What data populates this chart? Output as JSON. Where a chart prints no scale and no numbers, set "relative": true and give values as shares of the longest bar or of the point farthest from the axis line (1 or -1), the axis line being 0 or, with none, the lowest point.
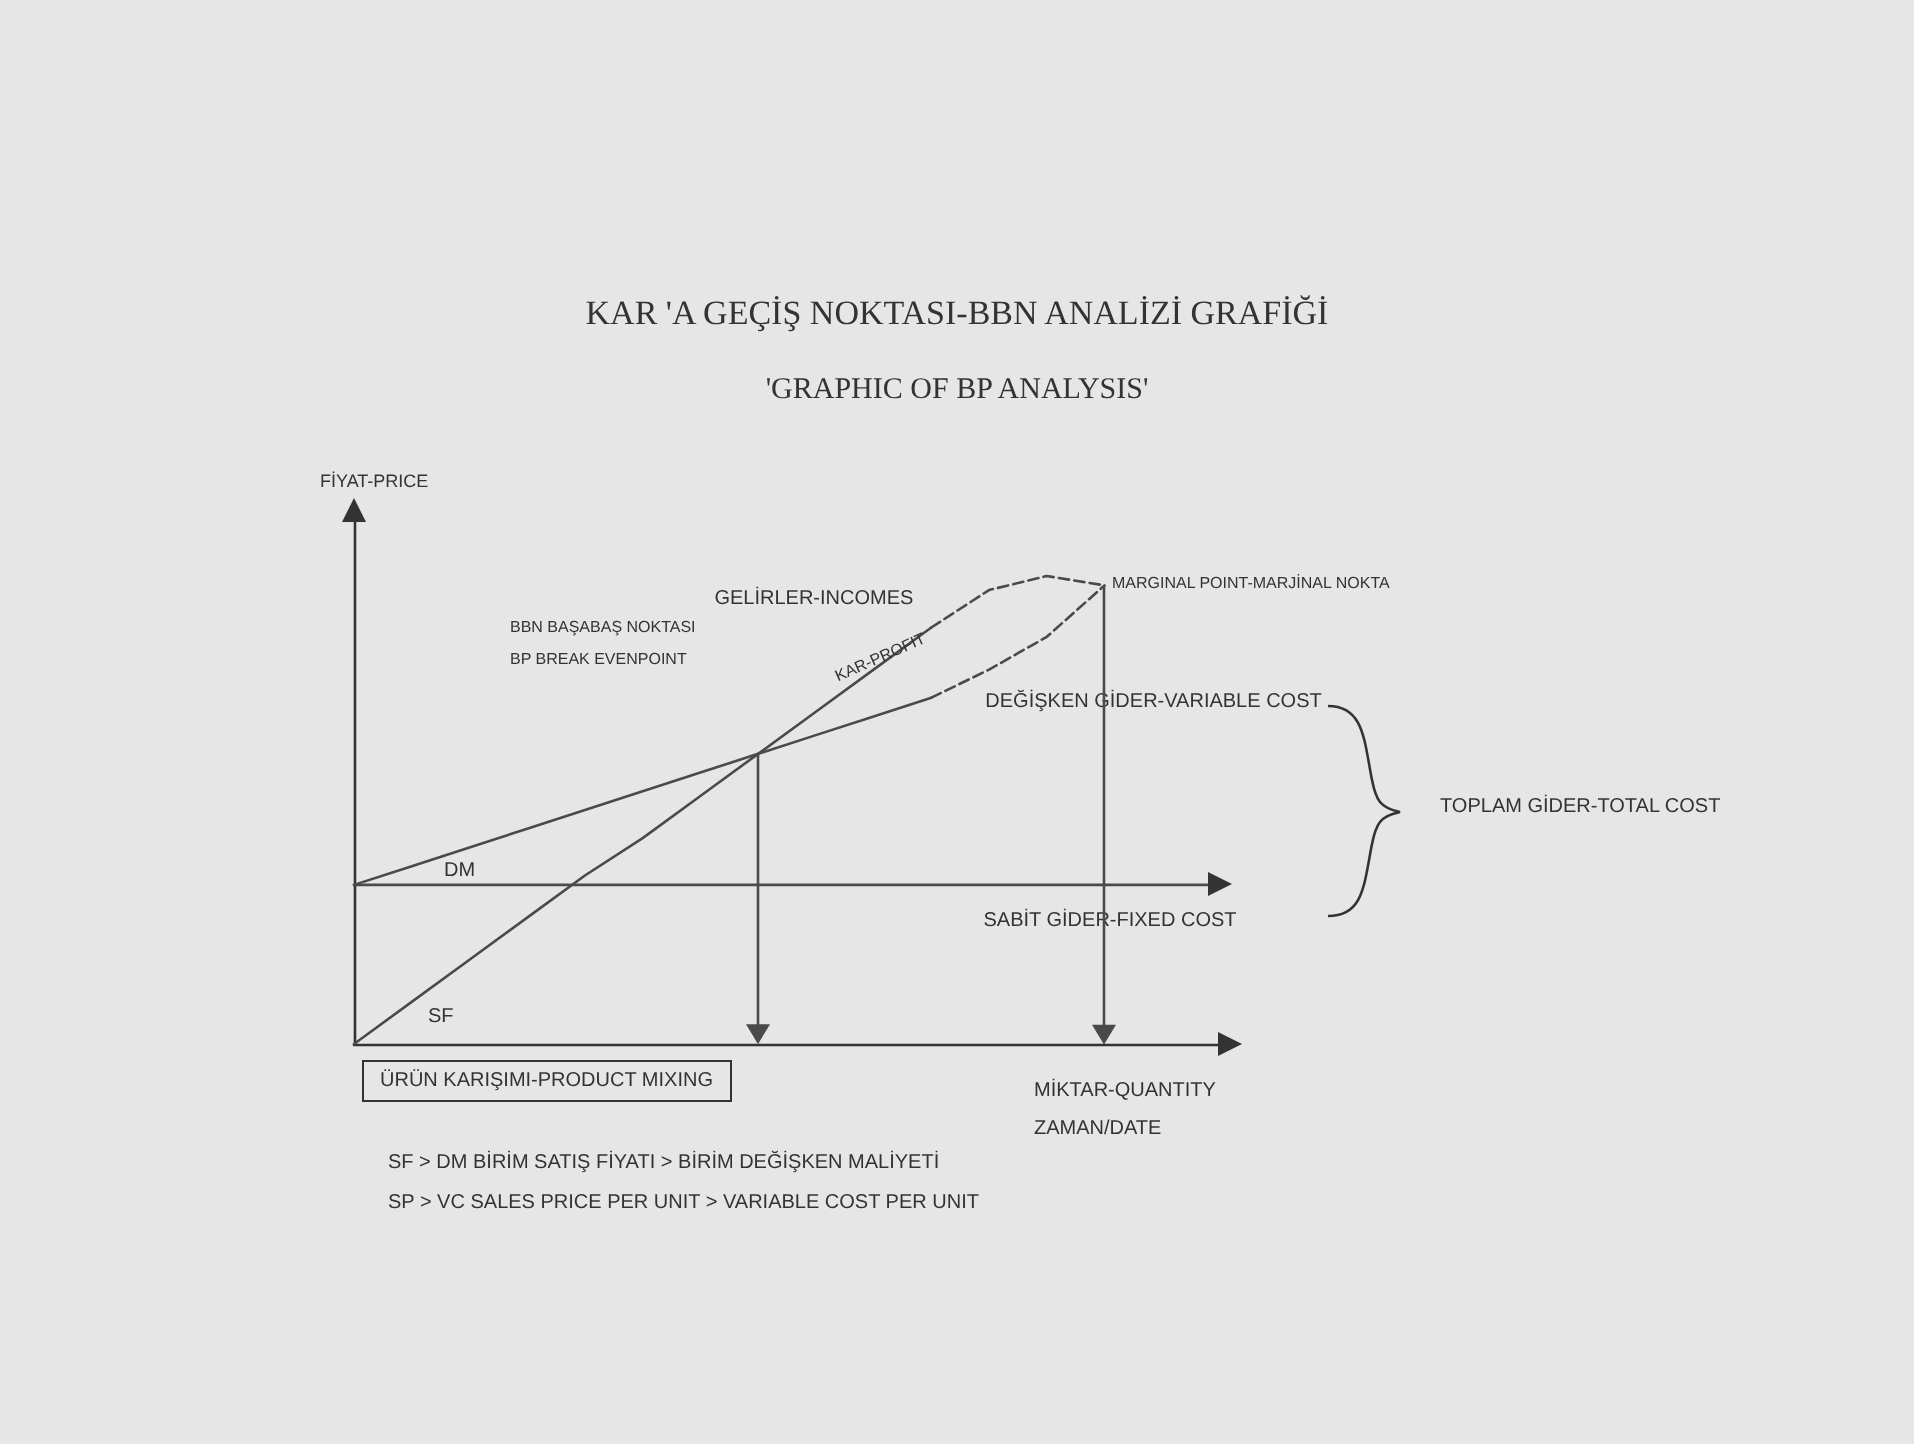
{
  "chart_data": {
    "type": "line",
    "title": "KAR 'A GEÇİŞ NOKTASI-BBN ANALİZİ GRAFİĞİ",
    "subtitle": "'GRAPHIC OF BP ANALYSIS'",
    "xlabel": "MİKTAR-QUANTITY\nZAMAN/DATE",
    "ylabel": "FİYAT-PRICE",
    "relative": true,
    "grid": false,
    "legend": false,
    "marker": "none",
    "categories": [
      null,
      null,
      null,
      null,
      null,
      null,
      null,
      null,
      null,
      null,
      null,
      null,
      null,
      null,
      null,
      null
    ],
    "series": [
      {
        "name": "GELİRLER-INCOMES",
        "color": "#4a4a4a",
        "values": [
          0,
          0.09,
          0.18,
          0.27,
          0.36,
          0.44,
          0.53,
          0.62,
          0.71,
          0.8,
          0.89,
          null,
          null,
          null,
          null,
          null
        ]
      },
      {
        "color": "#4a4a4a",
        "line_style": "dashed",
        "values": [
          null,
          null,
          null,
          null,
          null,
          null,
          null,
          null,
          null,
          null,
          0.89,
          0.97,
          1.0,
          0.98,
          null,
          null
        ]
      },
      {
        "name": "DEĞİŞKEN GİDER-VARIABLE COST",
        "color": "#4a4a4a",
        "values": [
          0.34,
          0.38,
          0.42,
          0.46,
          0.5,
          0.54,
          0.58,
          0.62,
          0.66,
          0.7,
          0.74,
          null,
          null,
          null,
          null,
          null
        ]
      },
      {
        "color": "#4a4a4a",
        "line_style": "dashed",
        "values": [
          null,
          null,
          null,
          null,
          null,
          null,
          null,
          null,
          null,
          null,
          0.74,
          0.8,
          0.87,
          0.98,
          null,
          null
        ]
      },
      {
        "name": "SABİT GİDER-FIXED COST",
        "color": "#4a4a4a",
        "values": [
          0.34,
          0.34,
          0.34,
          0.34,
          0.34,
          0.34,
          0.34,
          0.34,
          0.34,
          0.34,
          0.34,
          0.34,
          0.34,
          0.34,
          0.34,
          0.34
        ]
      }
    ],
    "annotations": [
      "BBN BAŞABAŞ NOKTASI\nBP BREAK EVENPOINT",
      "KAR-PROFIT",
      "MARGINAL POINT-MARJİNAL NOKTA",
      "DM",
      "SF",
      "TOPLAM GİDER-TOTAL COST",
      "ÜRÜN KARIŞIMI-PRODUCT MIXING",
      "SF > DM BİRİM SATIŞ FİYATI > BİRİM DEĞİŞKEN MALİYETİ",
      "SP > VC SALES PRICE PER UNIT > VARIABLE COST PER UNIT"
    ]
  }
}
